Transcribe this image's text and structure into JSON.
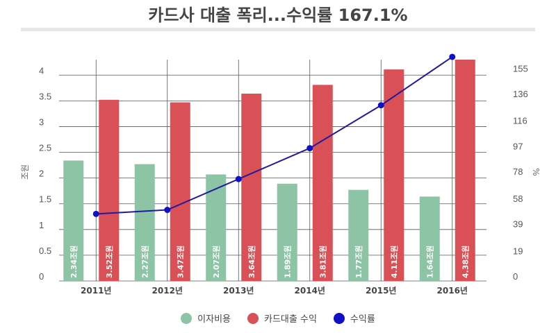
{
  "title": "카드사 대출 폭리...수익률 167.1%",
  "colors": {
    "interest": "#8dc4a5",
    "revenue": "#d95156",
    "rate": "#1f1aa0",
    "rate_marker": "#1010c8",
    "grid": "#555555"
  },
  "legend": [
    {
      "label": "이자비용",
      "color": "#8dc4a5"
    },
    {
      "label": "카드대출 수익",
      "color": "#d95156"
    },
    {
      "label": "수익률",
      "color": "#1010c8"
    }
  ],
  "chart_data": {
    "type": "bar",
    "title": "카드사 대출 폭리...수익률 167.1%",
    "categories": [
      "2011년",
      "2012년",
      "2013년",
      "2014년",
      "2015년",
      "2016년"
    ],
    "series": [
      {
        "name": "이자비용",
        "type": "bar",
        "axis": "left",
        "values": [
          2.34,
          2.27,
          2.07,
          1.89,
          1.77,
          1.64
        ],
        "labels": [
          "2.34조원",
          "2.27조원",
          "2.07조원",
          "1.89조원",
          "1.77조원",
          "1.64조원"
        ]
      },
      {
        "name": "카드대출 수익",
        "type": "bar",
        "axis": "left",
        "values": [
          3.52,
          3.47,
          3.64,
          3.81,
          4.11,
          4.38
        ],
        "labels": [
          "3.52조원",
          "3.47조원",
          "3.64조원",
          "3.81조원",
          "4.11조원",
          "4.38조원"
        ]
      },
      {
        "name": "수익률",
        "type": "line",
        "axis": "right",
        "values": [
          50,
          53,
          76,
          99,
          131,
          167.1
        ]
      }
    ],
    "ylabel": "조원",
    "y2label": "%",
    "ylim": [
      0,
      4.3
    ],
    "y2lim": [
      0,
      165
    ],
    "yticks": [
      "0",
      "0.5",
      "1",
      "1.5",
      "2",
      "2.5",
      "3",
      "3.5",
      "4"
    ],
    "y2ticks": [
      "0",
      "19",
      "39",
      "58",
      "78",
      "97",
      "116",
      "136",
      "155"
    ],
    "grid": true,
    "legend_position": "bottom"
  }
}
